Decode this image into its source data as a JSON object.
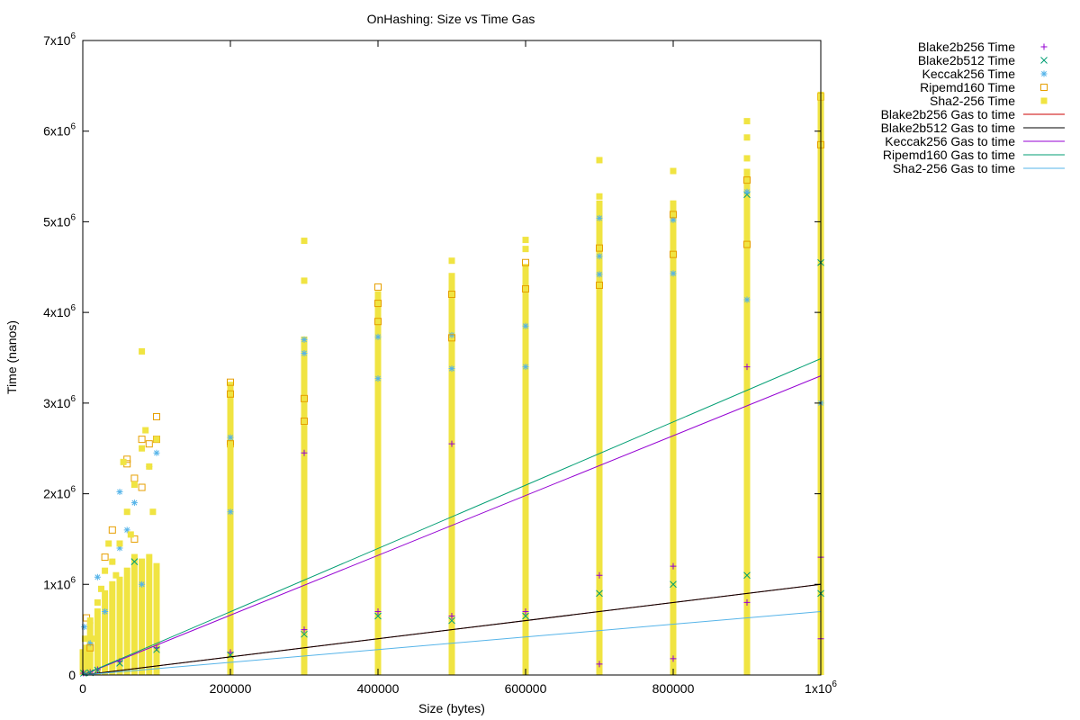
{
  "chart_data": {
    "type": "scatter",
    "title": "OnHashing: Size vs Time  Gas",
    "xlabel": "Size (bytes)",
    "ylabel": "Time (nanos)",
    "xlim": [
      0,
      1000000
    ],
    "ylim": [
      0,
      7000000
    ],
    "x_ticks": [
      {
        "value": 0,
        "label": "0"
      },
      {
        "value": 200000,
        "label": "200000"
      },
      {
        "value": 400000,
        "label": "400000"
      },
      {
        "value": 600000,
        "label": "600000"
      },
      {
        "value": 800000,
        "label": "800000"
      },
      {
        "value": 1000000,
        "label": "1x10",
        "exp": "6"
      }
    ],
    "y_ticks": [
      {
        "value": 0,
        "label": "0",
        "exp": ""
      },
      {
        "value": 1000000,
        "label": "1x10",
        "exp": "6"
      },
      {
        "value": 2000000,
        "label": "2x10",
        "exp": "6"
      },
      {
        "value": 3000000,
        "label": "3x10",
        "exp": "6"
      },
      {
        "value": 4000000,
        "label": "4x10",
        "exp": "6"
      },
      {
        "value": 5000000,
        "label": "5x10",
        "exp": "6"
      },
      {
        "value": 6000000,
        "label": "6x10",
        "exp": "6"
      },
      {
        "value": 7000000,
        "label": "7x10",
        "exp": "6"
      }
    ],
    "legend_position": "outside-top-right",
    "grid": false,
    "scatter_series": [
      {
        "name": "Blake2b256 Time",
        "color": "#9400d3",
        "marker": "plus",
        "points": [
          [
            1000,
            20000
          ],
          [
            10000,
            30000
          ],
          [
            20000,
            60000
          ],
          [
            50000,
            150000
          ],
          [
            100000,
            300000
          ],
          [
            200000,
            250000
          ],
          [
            300000,
            500000
          ],
          [
            300000,
            2450000
          ],
          [
            400000,
            700000
          ],
          [
            500000,
            650000
          ],
          [
            500000,
            2550000
          ],
          [
            600000,
            700000
          ],
          [
            700000,
            1100000
          ],
          [
            700000,
            120000
          ],
          [
            800000,
            180000
          ],
          [
            800000,
            1200000
          ],
          [
            900000,
            800000
          ],
          [
            900000,
            3400000
          ],
          [
            1000000,
            400000
          ],
          [
            1000000,
            1300000
          ]
        ]
      },
      {
        "name": "Blake2b512 Time",
        "color": "#009e73",
        "marker": "cross",
        "points": [
          [
            1000,
            20000
          ],
          [
            10000,
            25000
          ],
          [
            20000,
            55000
          ],
          [
            50000,
            130000
          ],
          [
            70000,
            1250000
          ],
          [
            100000,
            280000
          ],
          [
            200000,
            220000
          ],
          [
            300000,
            450000
          ],
          [
            400000,
            650000
          ],
          [
            500000,
            600000
          ],
          [
            600000,
            650000
          ],
          [
            700000,
            900000
          ],
          [
            800000,
            1000000
          ],
          [
            900000,
            1100000
          ],
          [
            900000,
            5300000
          ],
          [
            1000000,
            900000
          ],
          [
            1000000,
            4550000
          ]
        ]
      },
      {
        "name": "Keccak256 Time",
        "color": "#56b4e9",
        "marker": "star",
        "points": [
          [
            2000,
            530000
          ],
          [
            10000,
            350000
          ],
          [
            20000,
            1080000
          ],
          [
            30000,
            700000
          ],
          [
            40000,
            1250000
          ],
          [
            50000,
            2020000
          ],
          [
            50000,
            1400000
          ],
          [
            60000,
            1600000
          ],
          [
            70000,
            1900000
          ],
          [
            80000,
            1000000
          ],
          [
            90000,
            2300000
          ],
          [
            100000,
            2450000
          ],
          [
            200000,
            2620000
          ],
          [
            200000,
            1800000
          ],
          [
            300000,
            3700000
          ],
          [
            300000,
            3550000
          ],
          [
            400000,
            3730000
          ],
          [
            400000,
            3270000
          ],
          [
            500000,
            3750000
          ],
          [
            500000,
            3380000
          ],
          [
            600000,
            3850000
          ],
          [
            600000,
            3400000
          ],
          [
            700000,
            5040000
          ],
          [
            700000,
            4620000
          ],
          [
            700000,
            4420000
          ],
          [
            800000,
            5020000
          ],
          [
            800000,
            4430000
          ],
          [
            900000,
            5330000
          ],
          [
            900000,
            4140000
          ],
          [
            1000000,
            3000000
          ]
        ]
      },
      {
        "name": "Ripemd160 Time",
        "color": "#e69f00",
        "marker": "square-open",
        "points": [
          [
            5000,
            630000
          ],
          [
            10000,
            300000
          ],
          [
            30000,
            1300000
          ],
          [
            40000,
            1600000
          ],
          [
            60000,
            2380000
          ],
          [
            60000,
            2330000
          ],
          [
            70000,
            2170000
          ],
          [
            70000,
            1500000
          ],
          [
            80000,
            2600000
          ],
          [
            80000,
            2070000
          ],
          [
            90000,
            2550000
          ],
          [
            100000,
            2850000
          ],
          [
            100000,
            2600000
          ],
          [
            200000,
            3230000
          ],
          [
            200000,
            3100000
          ],
          [
            200000,
            2550000
          ],
          [
            300000,
            3050000
          ],
          [
            300000,
            2800000
          ],
          [
            400000,
            4280000
          ],
          [
            400000,
            4100000
          ],
          [
            400000,
            3900000
          ],
          [
            500000,
            4200000
          ],
          [
            500000,
            3720000
          ],
          [
            600000,
            4550000
          ],
          [
            600000,
            4260000
          ],
          [
            700000,
            4710000
          ],
          [
            700000,
            4300000
          ],
          [
            800000,
            5080000
          ],
          [
            800000,
            4640000
          ],
          [
            900000,
            5460000
          ],
          [
            900000,
            4750000
          ],
          [
            1000000,
            6380000
          ],
          [
            1000000,
            5850000
          ]
        ]
      },
      {
        "name": "Sha2-256 Time",
        "color": "#f0e442",
        "marker": "square-filled",
        "points": [
          [
            3000,
            400000
          ],
          [
            10000,
            600000
          ],
          [
            15000,
            400000
          ],
          [
            20000,
            800000
          ],
          [
            25000,
            950000
          ],
          [
            30000,
            1150000
          ],
          [
            35000,
            1450000
          ],
          [
            40000,
            1250000
          ],
          [
            45000,
            1100000
          ],
          [
            50000,
            1450000
          ],
          [
            55000,
            2350000
          ],
          [
            60000,
            1800000
          ],
          [
            65000,
            1550000
          ],
          [
            70000,
            2100000
          ],
          [
            80000,
            3570000
          ],
          [
            80000,
            2500000
          ],
          [
            85000,
            2700000
          ],
          [
            90000,
            2300000
          ],
          [
            95000,
            1800000
          ],
          [
            100000,
            2600000
          ],
          [
            200000,
            2500000
          ],
          [
            200000,
            1400000
          ],
          [
            300000,
            4790000
          ],
          [
            300000,
            4350000
          ],
          [
            300000,
            2300000
          ],
          [
            400000,
            3600000
          ],
          [
            400000,
            2500000
          ],
          [
            500000,
            4570000
          ],
          [
            500000,
            4400000
          ],
          [
            500000,
            3500000
          ],
          [
            600000,
            4800000
          ],
          [
            600000,
            4700000
          ],
          [
            600000,
            4350000
          ],
          [
            700000,
            5680000
          ],
          [
            700000,
            5280000
          ],
          [
            700000,
            4900000
          ],
          [
            800000,
            5560000
          ],
          [
            800000,
            5200000
          ],
          [
            900000,
            6110000
          ],
          [
            900000,
            5930000
          ],
          [
            900000,
            5700000
          ],
          [
            1000000,
            6380000
          ],
          [
            1000000,
            6070000
          ],
          [
            1000000,
            5550000
          ]
        ]
      }
    ],
    "sha2_columns": [
      {
        "x": 0,
        "from": 0,
        "to": 250000
      },
      {
        "x": 5000,
        "from": 0,
        "to": 300000
      },
      {
        "x": 10000,
        "from": 0,
        "to": 550000
      },
      {
        "x": 20000,
        "from": 0,
        "to": 700000
      },
      {
        "x": 30000,
        "from": 0,
        "to": 900000
      },
      {
        "x": 40000,
        "from": 0,
        "to": 1000000
      },
      {
        "x": 50000,
        "from": 0,
        "to": 1050000
      },
      {
        "x": 60000,
        "from": 0,
        "to": 1150000
      },
      {
        "x": 70000,
        "from": 0,
        "to": 1300000
      },
      {
        "x": 80000,
        "from": 0,
        "to": 1250000
      },
      {
        "x": 90000,
        "from": 0,
        "to": 1300000
      },
      {
        "x": 100000,
        "from": 0,
        "to": 1200000
      },
      {
        "x": 200000,
        "from": 0,
        "to": 3200000
      },
      {
        "x": 300000,
        "from": 0,
        "to": 3700000
      },
      {
        "x": 400000,
        "from": 0,
        "to": 4200000
      },
      {
        "x": 500000,
        "from": 0,
        "to": 4400000
      },
      {
        "x": 600000,
        "from": 0,
        "to": 4500000
      },
      {
        "x": 700000,
        "from": 0,
        "to": 5200000
      },
      {
        "x": 800000,
        "from": 0,
        "to": 5200000
      },
      {
        "x": 900000,
        "from": 0,
        "to": 5550000
      },
      {
        "x": 1000000,
        "from": 0,
        "to": 6400000
      }
    ],
    "line_series": [
      {
        "name": "Blake2b256 Gas to time",
        "color": "#cc0000",
        "points": [
          [
            0,
            0
          ],
          [
            1000000,
            1000000
          ]
        ]
      },
      {
        "name": "Blake2b512 Gas to time",
        "color": "#000000",
        "points": [
          [
            0,
            0
          ],
          [
            1000000,
            1000000
          ]
        ]
      },
      {
        "name": "Keccak256 Gas to time",
        "color": "#9400d3",
        "points": [
          [
            0,
            0
          ],
          [
            1000000,
            3300000
          ]
        ]
      },
      {
        "name": "Ripemd160 Gas to time",
        "color": "#009e73",
        "points": [
          [
            0,
            0
          ],
          [
            1000000,
            3490000
          ]
        ]
      },
      {
        "name": "Sha2-256 Gas to time",
        "color": "#56b4e9",
        "points": [
          [
            0,
            0
          ],
          [
            1000000,
            700000
          ]
        ]
      }
    ]
  }
}
